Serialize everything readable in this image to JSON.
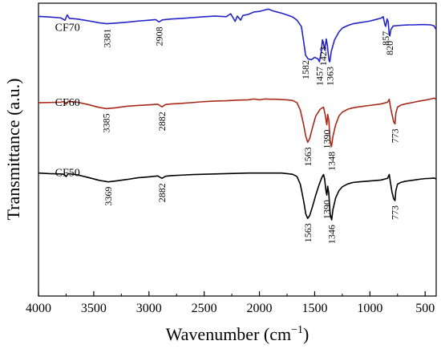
{
  "chart_data": {
    "type": "line",
    "xlabel": "Wavenumber (cm",
    "xlabel_sup": "−1",
    "xlabel_close": ")",
    "ylabel": "Transmittance (a.u.)",
    "xlim": [
      4000,
      400
    ],
    "x_reversed": true,
    "ylim": [
      0,
      100
    ],
    "grid": false,
    "x_ticks": [
      4000,
      3500,
      3000,
      2500,
      2000,
      1500,
      1000,
      500
    ],
    "series": [
      {
        "name": "CF70",
        "color": "#2323c8",
        "label_pos": [
          3850,
          90.5
        ],
        "points": [
          [
            4000,
            95.5
          ],
          [
            3900,
            95.3
          ],
          [
            3800,
            95.0
          ],
          [
            3760,
            94.2
          ],
          [
            3740,
            96.0
          ],
          [
            3720,
            94.8
          ],
          [
            3650,
            94.6
          ],
          [
            3550,
            94.0
          ],
          [
            3450,
            93.3
          ],
          [
            3381,
            93.0
          ],
          [
            3300,
            93.2
          ],
          [
            3200,
            93.5
          ],
          [
            3100,
            93.9
          ],
          [
            3000,
            94.2
          ],
          [
            2940,
            94.4
          ],
          [
            2908,
            93.6
          ],
          [
            2880,
            94.3
          ],
          [
            2800,
            94.6
          ],
          [
            2700,
            94.8
          ],
          [
            2600,
            95.1
          ],
          [
            2500,
            95.4
          ],
          [
            2400,
            95.6
          ],
          [
            2300,
            95.4
          ],
          [
            2260,
            96.4
          ],
          [
            2220,
            93.8
          ],
          [
            2200,
            95.6
          ],
          [
            2170,
            94.2
          ],
          [
            2150,
            95.8
          ],
          [
            2100,
            96.2
          ],
          [
            2050,
            97.0
          ],
          [
            2000,
            97.2
          ],
          [
            1960,
            97.6
          ],
          [
            1920,
            98.0
          ],
          [
            1880,
            97.4
          ],
          [
            1840,
            97.0
          ],
          [
            1800,
            96.6
          ],
          [
            1750,
            96.0
          ],
          [
            1700,
            95.3
          ],
          [
            1660,
            94.2
          ],
          [
            1620,
            92.0
          ],
          [
            1600,
            87.0
          ],
          [
            1582,
            82.2
          ],
          [
            1560,
            81.0
          ],
          [
            1530,
            80.7
          ],
          [
            1500,
            81.5
          ],
          [
            1470,
            81.0
          ],
          [
            1457,
            80.0
          ],
          [
            1440,
            83.5
          ],
          [
            1430,
            87.5
          ],
          [
            1423,
            86.8
          ],
          [
            1410,
            84.0
          ],
          [
            1395,
            87.8
          ],
          [
            1385,
            85.5
          ],
          [
            1370,
            80.4
          ],
          [
            1363,
            80.0
          ],
          [
            1350,
            83.5
          ],
          [
            1320,
            87.5
          ],
          [
            1280,
            90.2
          ],
          [
            1250,
            91.5
          ],
          [
            1200,
            92.4
          ],
          [
            1150,
            93.0
          ],
          [
            1100,
            93.3
          ],
          [
            1050,
            93.6
          ],
          [
            1000,
            93.9
          ],
          [
            950,
            94.4
          ],
          [
            900,
            94.9
          ],
          [
            880,
            95.4
          ],
          [
            865,
            92.8
          ],
          [
            857,
            92.1
          ],
          [
            845,
            94.6
          ],
          [
            835,
            93.8
          ],
          [
            825,
            89.4
          ],
          [
            820,
            88.8
          ],
          [
            810,
            91.0
          ],
          [
            790,
            92.2
          ],
          [
            740,
            92.4
          ],
          [
            700,
            92.5
          ],
          [
            650,
            92.6
          ],
          [
            600,
            92.6
          ],
          [
            550,
            92.7
          ],
          [
            500,
            92.7
          ],
          [
            450,
            92.6
          ],
          [
            420,
            92.3
          ],
          [
            400,
            91.0
          ]
        ],
        "peaks": [
          {
            "x": 3381,
            "label": "3381"
          },
          {
            "x": 2908,
            "label": "2908"
          },
          {
            "x": 1582,
            "label": "1582"
          },
          {
            "x": 1457,
            "label": "1457"
          },
          {
            "x": 1423,
            "label": "1423"
          },
          {
            "x": 1363,
            "label": "1363"
          },
          {
            "x": 857,
            "label": "857"
          },
          {
            "x": 820,
            "label": "820"
          }
        ]
      },
      {
        "name": "CF60",
        "color": "#a82a1a",
        "label_pos": [
          3850,
          65.0
        ],
        "points": [
          [
            4000,
            66.0
          ],
          [
            3900,
            66.1
          ],
          [
            3800,
            66.2
          ],
          [
            3770,
            66.4
          ],
          [
            3750,
            65.5
          ],
          [
            3730,
            66.5
          ],
          [
            3650,
            66.2
          ],
          [
            3550,
            65.4
          ],
          [
            3450,
            64.4
          ],
          [
            3385,
            64.0
          ],
          [
            3300,
            64.3
          ],
          [
            3200,
            64.8
          ],
          [
            3100,
            65.1
          ],
          [
            3000,
            65.3
          ],
          [
            2920,
            65.5
          ],
          [
            2882,
            64.6
          ],
          [
            2850,
            65.4
          ],
          [
            2800,
            65.6
          ],
          [
            2700,
            65.8
          ],
          [
            2600,
            66.1
          ],
          [
            2500,
            66.4
          ],
          [
            2400,
            66.6
          ],
          [
            2300,
            66.7
          ],
          [
            2200,
            66.9
          ],
          [
            2100,
            67.0
          ],
          [
            2050,
            67.3
          ],
          [
            2000,
            67.0
          ],
          [
            1950,
            67.3
          ],
          [
            1900,
            67.2
          ],
          [
            1850,
            67.2
          ],
          [
            1800,
            67.1
          ],
          [
            1750,
            67.0
          ],
          [
            1700,
            66.8
          ],
          [
            1660,
            66.0
          ],
          [
            1630,
            63.5
          ],
          [
            1600,
            58.5
          ],
          [
            1580,
            54.5
          ],
          [
            1563,
            52.5
          ],
          [
            1545,
            53.8
          ],
          [
            1520,
            57.5
          ],
          [
            1490,
            61.5
          ],
          [
            1450,
            63.8
          ],
          [
            1420,
            64.5
          ],
          [
            1405,
            62.0
          ],
          [
            1395,
            59.5
          ],
          [
            1390,
            58.5
          ],
          [
            1382,
            62.0
          ],
          [
            1372,
            60.0
          ],
          [
            1360,
            53.0
          ],
          [
            1348,
            51.0
          ],
          [
            1335,
            54.5
          ],
          [
            1310,
            58.5
          ],
          [
            1280,
            61.5
          ],
          [
            1250,
            62.8
          ],
          [
            1200,
            63.8
          ],
          [
            1150,
            64.3
          ],
          [
            1100,
            64.6
          ],
          [
            1000,
            65.1
          ],
          [
            900,
            65.6
          ],
          [
            840,
            66.2
          ],
          [
            825,
            67.2
          ],
          [
            815,
            64.8
          ],
          [
            800,
            62.0
          ],
          [
            785,
            59.5
          ],
          [
            773,
            58.8
          ],
          [
            765,
            62.5
          ],
          [
            750,
            64.5
          ],
          [
            720,
            65.2
          ],
          [
            680,
            65.6
          ],
          [
            600,
            66.2
          ],
          [
            550,
            66.6
          ],
          [
            500,
            66.9
          ],
          [
            450,
            67.3
          ],
          [
            420,
            67.6
          ],
          [
            400,
            67.2
          ]
        ],
        "peaks": [
          {
            "x": 3385,
            "label": "3385"
          },
          {
            "x": 2882,
            "label": "2882"
          },
          {
            "x": 1563,
            "label": "1563"
          },
          {
            "x": 1390,
            "label": "1390"
          },
          {
            "x": 1348,
            "label": "1348"
          },
          {
            "x": 773,
            "label": "773"
          }
        ]
      },
      {
        "name": "CF50",
        "color": "#000000",
        "label_pos": [
          3850,
          41.0
        ],
        "points": [
          [
            4000,
            42.0
          ],
          [
            3900,
            41.8
          ],
          [
            3800,
            41.7
          ],
          [
            3770,
            41.6
          ],
          [
            3750,
            40.8
          ],
          [
            3730,
            41.8
          ],
          [
            3650,
            41.4
          ],
          [
            3550,
            40.5
          ],
          [
            3450,
            39.5
          ],
          [
            3369,
            39.0
          ],
          [
            3300,
            39.3
          ],
          [
            3200,
            39.8
          ],
          [
            3100,
            40.4
          ],
          [
            3000,
            40.7
          ],
          [
            2920,
            41.0
          ],
          [
            2882,
            40.2
          ],
          [
            2850,
            40.9
          ],
          [
            2800,
            41.1
          ],
          [
            2700,
            41.3
          ],
          [
            2600,
            41.5
          ],
          [
            2500,
            41.6
          ],
          [
            2400,
            41.7
          ],
          [
            2300,
            41.8
          ],
          [
            2200,
            41.9
          ],
          [
            2100,
            42.0
          ],
          [
            2000,
            42.0
          ],
          [
            1900,
            42.0
          ],
          [
            1800,
            42.0
          ],
          [
            1700,
            41.6
          ],
          [
            1660,
            40.8
          ],
          [
            1630,
            38.2
          ],
          [
            1600,
            32.5
          ],
          [
            1580,
            28.0
          ],
          [
            1563,
            26.5
          ],
          [
            1545,
            27.5
          ],
          [
            1520,
            30.5
          ],
          [
            1490,
            34.5
          ],
          [
            1460,
            38.0
          ],
          [
            1435,
            40.5
          ],
          [
            1420,
            41.5
          ],
          [
            1410,
            40.0
          ],
          [
            1398,
            36.0
          ],
          [
            1390,
            34.5
          ],
          [
            1382,
            37.5
          ],
          [
            1372,
            35.0
          ],
          [
            1360,
            28.0
          ],
          [
            1346,
            26.0
          ],
          [
            1335,
            29.5
          ],
          [
            1310,
            33.5
          ],
          [
            1280,
            36.0
          ],
          [
            1250,
            37.3
          ],
          [
            1200,
            38.3
          ],
          [
            1150,
            38.8
          ],
          [
            1100,
            39.0
          ],
          [
            1000,
            39.3
          ],
          [
            900,
            39.6
          ],
          [
            840,
            40.2
          ],
          [
            825,
            41.5
          ],
          [
            815,
            39.0
          ],
          [
            800,
            35.5
          ],
          [
            785,
            33.2
          ],
          [
            773,
            32.6
          ],
          [
            765,
            36.0
          ],
          [
            750,
            38.2
          ],
          [
            720,
            38.8
          ],
          [
            680,
            39.2
          ],
          [
            600,
            39.6
          ],
          [
            550,
            39.9
          ],
          [
            500,
            40.1
          ],
          [
            450,
            40.2
          ],
          [
            420,
            40.3
          ],
          [
            400,
            40.0
          ]
        ],
        "peaks": [
          {
            "x": 3369,
            "label": "3369"
          },
          {
            "x": 2882,
            "label": "2882"
          },
          {
            "x": 1563,
            "label": "1563"
          },
          {
            "x": 1390,
            "label": "1390"
          },
          {
            "x": 1346,
            "label": "1346"
          },
          {
            "x": 773,
            "label": "773"
          }
        ]
      }
    ]
  }
}
